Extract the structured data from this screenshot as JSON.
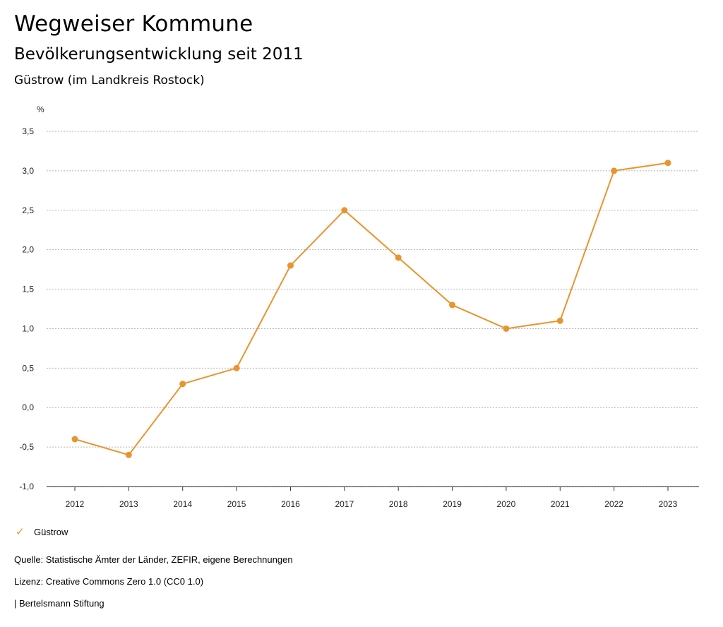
{
  "header": {
    "title": "Wegweiser Kommune",
    "subtitle": "Bevölkerungsentwicklung seit 2011",
    "region": "Güstrow (im Landkreis Rostock)"
  },
  "legend": {
    "items": [
      {
        "label": "Güstrow",
        "icon": "check-icon",
        "color": "#e8952f"
      }
    ]
  },
  "footer": {
    "source": "Quelle: Statistische Ämter der Länder, ZEFIR, eigene Berechnungen",
    "license": "Lizenz: Creative Commons Zero 1.0 (CC0 1.0)",
    "publisher": "| Bertelsmann Stiftung"
  },
  "chart_data": {
    "type": "line",
    "title": "Bevölkerungsentwicklung seit 2011",
    "ylabel": "%",
    "xlabel": "",
    "ylim": [
      -1.0,
      3.5
    ],
    "yticks": [
      -1.0,
      -0.5,
      0.0,
      0.5,
      1.0,
      1.5,
      2.0,
      2.5,
      3.0,
      3.5
    ],
    "ytick_labels": [
      "-1,0",
      "-0,5",
      "0,0",
      "0,5",
      "1,0",
      "1,5",
      "2,0",
      "2,5",
      "3,0",
      "3,5"
    ],
    "categories": [
      "2012",
      "2013",
      "2014",
      "2015",
      "2016",
      "2017",
      "2018",
      "2019",
      "2020",
      "2021",
      "2022",
      "2023"
    ],
    "grid": true,
    "series": [
      {
        "name": "Güstrow",
        "color": "#e8952f",
        "values": [
          -0.4,
          -0.6,
          0.3,
          0.5,
          1.8,
          2.5,
          1.9,
          1.3,
          1.0,
          1.1,
          3.0,
          3.1
        ]
      }
    ]
  }
}
